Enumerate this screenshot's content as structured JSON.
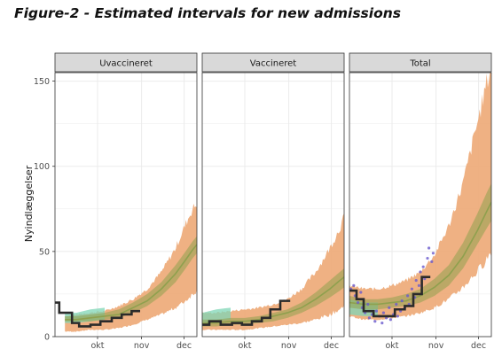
{
  "figure": {
    "title": "Figure-2 - Estimated intervals for new admissions"
  },
  "chart_data": {
    "type": "line",
    "ylabel": "Nyindlæggelser",
    "xlabel": "",
    "ylim": [
      0,
      155
    ],
    "yticks": [
      0,
      50,
      100,
      150
    ],
    "xlim": [
      0,
      100
    ],
    "xticks": [
      {
        "label": "okt",
        "x": 30
      },
      {
        "label": "nov",
        "x": 61
      },
      {
        "label": "dec",
        "x": 91
      }
    ],
    "grid": true,
    "legend": "none",
    "colors": {
      "outer_band": "#eeaa78",
      "inner_band": "#8fa04e",
      "median_line": "#8fa04e",
      "early_band": "#7fd6b5",
      "observed": "#2b2b2b",
      "points": "#6a5acd",
      "strip_fill": "#d9d9d9",
      "panel_fill": "#ffffff",
      "grid": "#ebebeb"
    },
    "panels": [
      {
        "name": "Uvaccineret",
        "bands": {
          "x": [
            7,
            15,
            25,
            35,
            45,
            55,
            65,
            75,
            85,
            92,
            97,
            100
          ],
          "outer_lo": [
            3,
            3,
            4,
            4,
            5,
            7,
            10,
            13,
            17,
            21,
            25,
            27
          ],
          "outer_hi": [
            12,
            13,
            14,
            15,
            18,
            22,
            28,
            38,
            52,
            66,
            75,
            78
          ],
          "inner_lo": [
            9,
            9,
            9,
            10,
            11,
            14,
            18,
            24,
            32,
            40,
            46,
            49
          ],
          "inner_hi": [
            12,
            12,
            13,
            14,
            16,
            20,
            25,
            32,
            42,
            50,
            56,
            59
          ],
          "median": [
            10,
            10,
            11,
            12,
            13,
            17,
            21,
            28,
            37,
            45,
            51,
            54
          ],
          "early_lo": [
            8,
            8,
            9,
            10
          ],
          "early_hi": [
            14,
            14,
            16,
            17
          ]
        },
        "observed_steps": [
          {
            "x": 0,
            "y": 20
          },
          {
            "x": 3,
            "y": 14
          },
          {
            "x": 12,
            "y": 8
          },
          {
            "x": 17,
            "y": 6
          },
          {
            "x": 25,
            "y": 7
          },
          {
            "x": 32,
            "y": 9
          },
          {
            "x": 40,
            "y": 11
          },
          {
            "x": 47,
            "y": 13
          },
          {
            "x": 54,
            "y": 15
          },
          {
            "x": 60,
            "y": 15
          }
        ],
        "points": []
      },
      {
        "name": "Vaccineret",
        "bands": {
          "x": [
            0,
            10,
            20,
            30,
            40,
            50,
            60,
            70,
            80,
            90,
            97,
            100
          ],
          "outer_lo": [
            4,
            4,
            4,
            4,
            5,
            6,
            7,
            8,
            10,
            13,
            16,
            18
          ],
          "outer_hi": [
            14,
            14,
            15,
            16,
            17,
            19,
            22,
            28,
            38,
            52,
            64,
            70
          ],
          "inner_lo": [
            6,
            6,
            7,
            7,
            8,
            9,
            11,
            14,
            18,
            23,
            27,
            29
          ],
          "inner_hi": [
            10,
            10,
            11,
            11,
            12,
            14,
            16,
            20,
            26,
            33,
            38,
            40
          ],
          "median": [
            8,
            8,
            9,
            9,
            10,
            12,
            14,
            17,
            22,
            28,
            33,
            35
          ],
          "early_lo": [
            8,
            9,
            10
          ],
          "early_hi": [
            14,
            16,
            17
          ]
        },
        "observed_steps": [
          {
            "x": 0,
            "y": 7
          },
          {
            "x": 5,
            "y": 9
          },
          {
            "x": 13,
            "y": 7
          },
          {
            "x": 21,
            "y": 8
          },
          {
            "x": 28,
            "y": 7
          },
          {
            "x": 35,
            "y": 9
          },
          {
            "x": 42,
            "y": 11
          },
          {
            "x": 48,
            "y": 16
          },
          {
            "x": 55,
            "y": 21
          },
          {
            "x": 62,
            "y": 21
          }
        ],
        "points": []
      },
      {
        "name": "Total",
        "bands": {
          "x": [
            0,
            10,
            20,
            30,
            40,
            50,
            60,
            70,
            80,
            90,
            97,
            100
          ],
          "outer_lo": [
            12,
            10,
            10,
            11,
            12,
            14,
            17,
            22,
            29,
            38,
            46,
            50
          ],
          "outer_hi": [
            30,
            28,
            28,
            30,
            33,
            38,
            48,
            65,
            90,
            125,
            150,
            158
          ],
          "inner_lo": [
            17,
            16,
            16,
            17,
            18,
            20,
            24,
            30,
            40,
            54,
            64,
            68
          ],
          "inner_hi": [
            24,
            22,
            22,
            23,
            25,
            28,
            34,
            42,
            55,
            72,
            85,
            90
          ],
          "median": [
            20,
            19,
            19,
            20,
            21,
            24,
            29,
            36,
            47,
            62,
            74,
            79
          ],
          "early_lo": [
            13,
            12,
            12
          ],
          "early_hi": [
            22,
            20,
            20
          ]
        },
        "observed_steps": [
          {
            "x": 0,
            "y": 27
          },
          {
            "x": 5,
            "y": 22
          },
          {
            "x": 10,
            "y": 15
          },
          {
            "x": 17,
            "y": 12
          },
          {
            "x": 25,
            "y": 12
          },
          {
            "x": 32,
            "y": 16
          },
          {
            "x": 39,
            "y": 18
          },
          {
            "x": 45,
            "y": 25
          },
          {
            "x": 51,
            "y": 35
          },
          {
            "x": 57,
            "y": 35
          }
        ],
        "points": [
          {
            "x": 1,
            "y": 28
          },
          {
            "x": 3,
            "y": 30
          },
          {
            "x": 4,
            "y": 24
          },
          {
            "x": 6,
            "y": 20
          },
          {
            "x": 8,
            "y": 26
          },
          {
            "x": 9,
            "y": 17
          },
          {
            "x": 11,
            "y": 14
          },
          {
            "x": 13,
            "y": 19
          },
          {
            "x": 14,
            "y": 11
          },
          {
            "x": 16,
            "y": 13
          },
          {
            "x": 18,
            "y": 9
          },
          {
            "x": 19,
            "y": 15
          },
          {
            "x": 21,
            "y": 12
          },
          {
            "x": 23,
            "y": 8
          },
          {
            "x": 24,
            "y": 14
          },
          {
            "x": 26,
            "y": 11
          },
          {
            "x": 28,
            "y": 17
          },
          {
            "x": 29,
            "y": 10
          },
          {
            "x": 31,
            "y": 13
          },
          {
            "x": 33,
            "y": 19
          },
          {
            "x": 34,
            "y": 12
          },
          {
            "x": 36,
            "y": 15
          },
          {
            "x": 37,
            "y": 21
          },
          {
            "x": 39,
            "y": 17
          },
          {
            "x": 41,
            "y": 24
          },
          {
            "x": 42,
            "y": 19
          },
          {
            "x": 44,
            "y": 28
          },
          {
            "x": 46,
            "y": 23
          },
          {
            "x": 47,
            "y": 33
          },
          {
            "x": 49,
            "y": 30
          },
          {
            "x": 50,
            "y": 38
          },
          {
            "x": 52,
            "y": 41
          },
          {
            "x": 53,
            "y": 34
          },
          {
            "x": 55,
            "y": 46
          },
          {
            "x": 56,
            "y": 52
          },
          {
            "x": 58,
            "y": 44
          },
          {
            "x": 59,
            "y": 49
          }
        ]
      }
    ]
  }
}
